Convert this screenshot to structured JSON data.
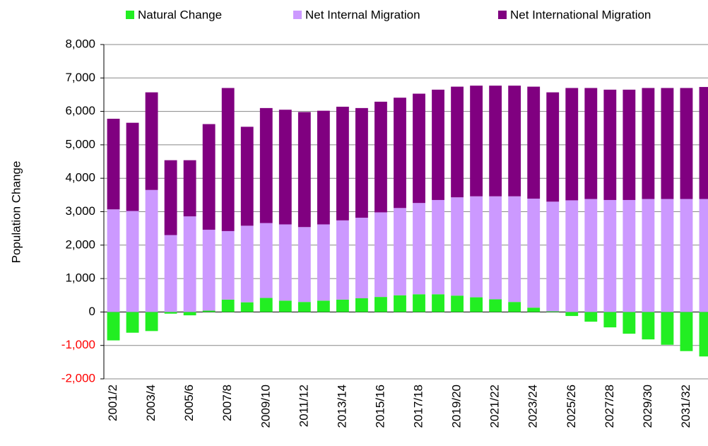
{
  "chart_data": {
    "type": "stacked_bar",
    "y_axis_label": "Population Change",
    "categories": [
      "2001/2",
      null,
      "2003/4",
      null,
      "2005/6",
      null,
      "2007/8",
      null,
      "2009/10",
      null,
      "2011/12",
      null,
      "2013/14",
      null,
      "2015/16",
      null,
      "2017/18",
      null,
      "2019/20",
      null,
      "2021/22",
      null,
      "2023/24",
      null,
      "2025/26",
      null,
      "2027/28",
      null,
      "2029/30",
      null,
      "2031/32",
      null
    ],
    "series": [
      {
        "name": "Natural Change",
        "color": "#22ee22",
        "values": [
          -850,
          -620,
          -570,
          -50,
          -100,
          40,
          370,
          290,
          420,
          340,
          300,
          340,
          370,
          410,
          450,
          500,
          530,
          530,
          490,
          440,
          380,
          300,
          130,
          20,
          -120,
          -290,
          -460,
          -650,
          -820,
          -980,
          -1170,
          -1330
        ]
      },
      {
        "name": "Net Internal Migration",
        "color": "#cc99ff",
        "values": [
          3070,
          3020,
          3650,
          2300,
          2860,
          2420,
          2050,
          2290,
          2240,
          2280,
          2240,
          2280,
          2370,
          2410,
          2530,
          2610,
          2730,
          2820,
          2940,
          3020,
          3080,
          3160,
          3260,
          3280,
          3340,
          3380,
          3350,
          3350,
          3380,
          3380,
          3380,
          3380
        ]
      },
      {
        "name": "Net International Migration",
        "color": "#800080",
        "values": [
          2710,
          2640,
          2920,
          2240,
          1680,
          3160,
          4280,
          2960,
          3440,
          3430,
          3440,
          3400,
          3400,
          3280,
          3310,
          3300,
          3270,
          3300,
          3310,
          3310,
          3310,
          3310,
          3350,
          3270,
          3360,
          3320,
          3300,
          3300,
          3320,
          3320,
          3320,
          3350
        ]
      }
    ],
    "ylim": [
      -2000,
      8000
    ],
    "yticks": [
      {
        "value": -2000,
        "label": "-2,000"
      },
      {
        "value": -1000,
        "label": "-1,000"
      },
      0,
      {
        "value": 1000,
        "label": "1,000"
      },
      {
        "value": 2000,
        "label": "2,000"
      },
      {
        "value": 3000,
        "label": "3,000"
      },
      {
        "value": 4000,
        "label": "4,000"
      },
      {
        "value": 5000,
        "label": "5,000"
      },
      {
        "value": 6000,
        "label": "6,000"
      },
      {
        "value": 7000,
        "label": "7,000"
      },
      {
        "value": 8000,
        "label": "8,000"
      }
    ],
    "grid": true,
    "legend": "top",
    "negative_tick_color": "#ff0000"
  }
}
